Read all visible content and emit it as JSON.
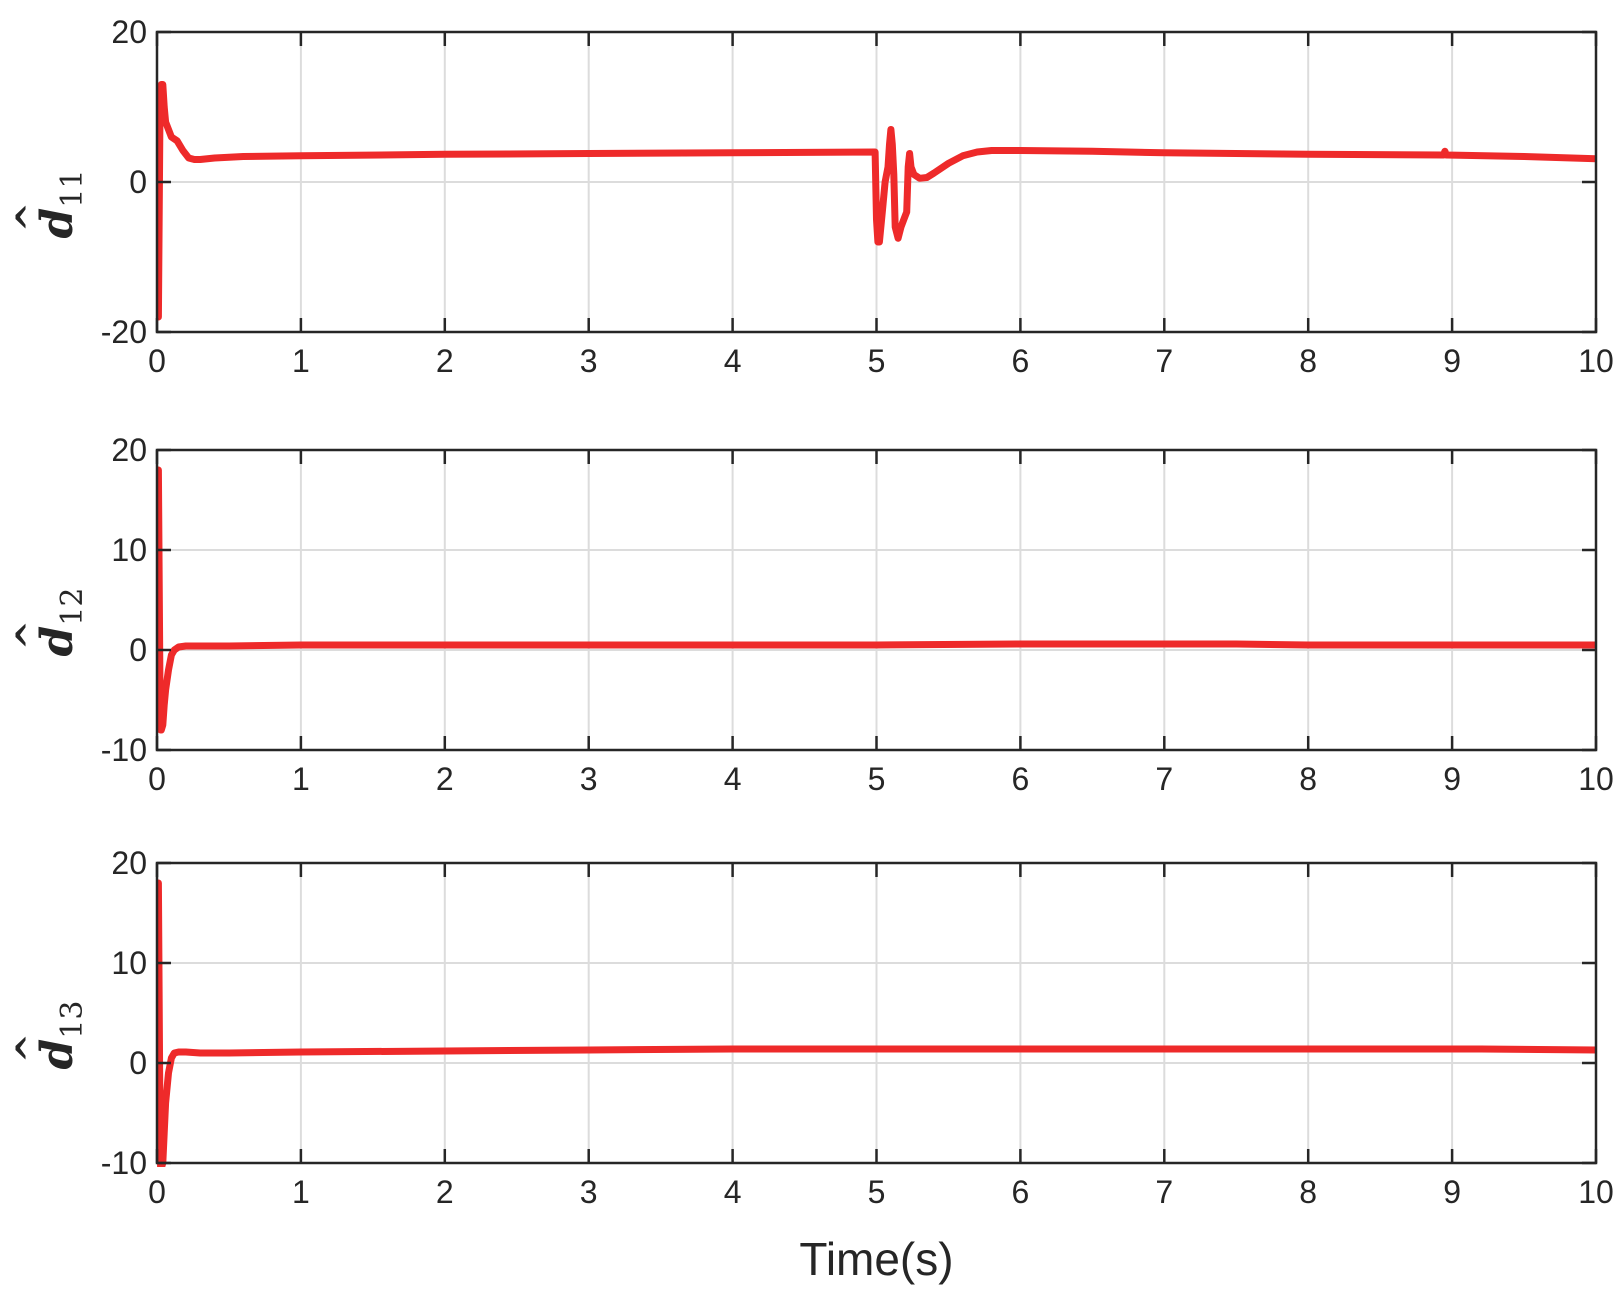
{
  "colors": {
    "series": "#ee2a2a",
    "axes": "#262626",
    "grid": "#dcdcdc",
    "background": "#ffffff"
  },
  "chart_data": [
    {
      "type": "line",
      "ylabel_base": "d",
      "ylabel_sub": "11",
      "ylabel_accent": "^",
      "xlabel": "",
      "xlim": [
        0,
        10
      ],
      "ylim": [
        -20,
        20
      ],
      "xticks": [
        "0",
        "1",
        "2",
        "3",
        "4",
        "5",
        "6",
        "7",
        "8",
        "9",
        "10"
      ],
      "yticks": [
        "-20",
        "0",
        "20"
      ],
      "grid": true,
      "series": [
        {
          "x": [
            0.0,
            0.005,
            0.01,
            0.02,
            0.03,
            0.04,
            0.05,
            0.06,
            0.08,
            0.1,
            0.14,
            0.18,
            0.22,
            0.26,
            0.3,
            0.4,
            0.6,
            1.0,
            2.0,
            3.0,
            4.0,
            4.99,
            5.0,
            5.01,
            5.02,
            5.04,
            5.06,
            5.08,
            5.09,
            5.1,
            5.11,
            5.12,
            5.13,
            5.15,
            5.17,
            5.19,
            5.21,
            5.22,
            5.23,
            5.24,
            5.26,
            5.3,
            5.35,
            5.4,
            5.5,
            5.6,
            5.7,
            5.8,
            6.0,
            6.5,
            7.0,
            8.0,
            8.94,
            8.95,
            8.96,
            9.5,
            10.0
          ],
          "y": [
            0,
            -18,
            -18,
            8,
            13,
            13,
            10,
            8,
            7,
            6,
            5.5,
            4.2,
            3.2,
            3.0,
            3.0,
            3.2,
            3.4,
            3.5,
            3.7,
            3.8,
            3.9,
            4.0,
            -5,
            -8,
            -8,
            -4,
            0,
            2,
            5,
            7,
            5,
            1,
            -6,
            -7.5,
            -6,
            -5,
            -4,
            2,
            3.8,
            2,
            1,
            0.5,
            0.6,
            1.2,
            2.5,
            3.5,
            4.0,
            4.2,
            4.2,
            4.1,
            3.9,
            3.7,
            3.6,
            4.1,
            3.6,
            3.4,
            3.1
          ]
        }
      ]
    },
    {
      "type": "line",
      "ylabel_base": "d",
      "ylabel_sub": "12",
      "ylabel_accent": "^",
      "xlabel": "",
      "xlim": [
        0,
        10
      ],
      "ylim": [
        -10,
        20
      ],
      "xticks": [
        "0",
        "1",
        "2",
        "3",
        "4",
        "5",
        "6",
        "7",
        "8",
        "9",
        "10"
      ],
      "yticks": [
        "-10",
        "0",
        "10",
        "20"
      ],
      "grid": true,
      "series": [
        {
          "x": [
            0.0,
            0.005,
            0.01,
            0.02,
            0.025,
            0.03,
            0.04,
            0.05,
            0.06,
            0.08,
            0.1,
            0.12,
            0.15,
            0.2,
            0.3,
            0.5,
            1.0,
            2.0,
            4.0,
            5.0,
            6.0,
            7.5,
            8.0,
            9.0,
            10.0
          ],
          "y": [
            0,
            18,
            18,
            -3,
            -8,
            -8,
            -7.5,
            -5.5,
            -4,
            -2,
            -0.5,
            0.0,
            0.3,
            0.4,
            0.4,
            0.4,
            0.5,
            0.5,
            0.5,
            0.5,
            0.6,
            0.6,
            0.5,
            0.5,
            0.5
          ]
        }
      ]
    },
    {
      "type": "line",
      "ylabel_base": "d",
      "ylabel_sub": "13",
      "ylabel_accent": "^",
      "xlabel": "Time(s)",
      "xlim": [
        0,
        10
      ],
      "ylim": [
        -10,
        20
      ],
      "xticks": [
        "0",
        "1",
        "2",
        "3",
        "4",
        "5",
        "6",
        "7",
        "8",
        "9",
        "10"
      ],
      "yticks": [
        "-10",
        "0",
        "10",
        "20"
      ],
      "grid": true,
      "series": [
        {
          "x": [
            0.0,
            0.005,
            0.01,
            0.02,
            0.025,
            0.03,
            0.04,
            0.05,
            0.06,
            0.08,
            0.1,
            0.12,
            0.15,
            0.2,
            0.3,
            0.5,
            1.0,
            2.0,
            3.0,
            4.0,
            5.0,
            6.0,
            7.0,
            8.0,
            9.0,
            9.2,
            10.0
          ],
          "y": [
            0,
            18,
            18,
            -5,
            -10.5,
            -10.5,
            -10,
            -7,
            -4,
            -1,
            0.5,
            1.0,
            1.1,
            1.1,
            1.0,
            1.0,
            1.1,
            1.2,
            1.3,
            1.4,
            1.4,
            1.4,
            1.4,
            1.4,
            1.4,
            1.4,
            1.3
          ]
        }
      ]
    }
  ]
}
